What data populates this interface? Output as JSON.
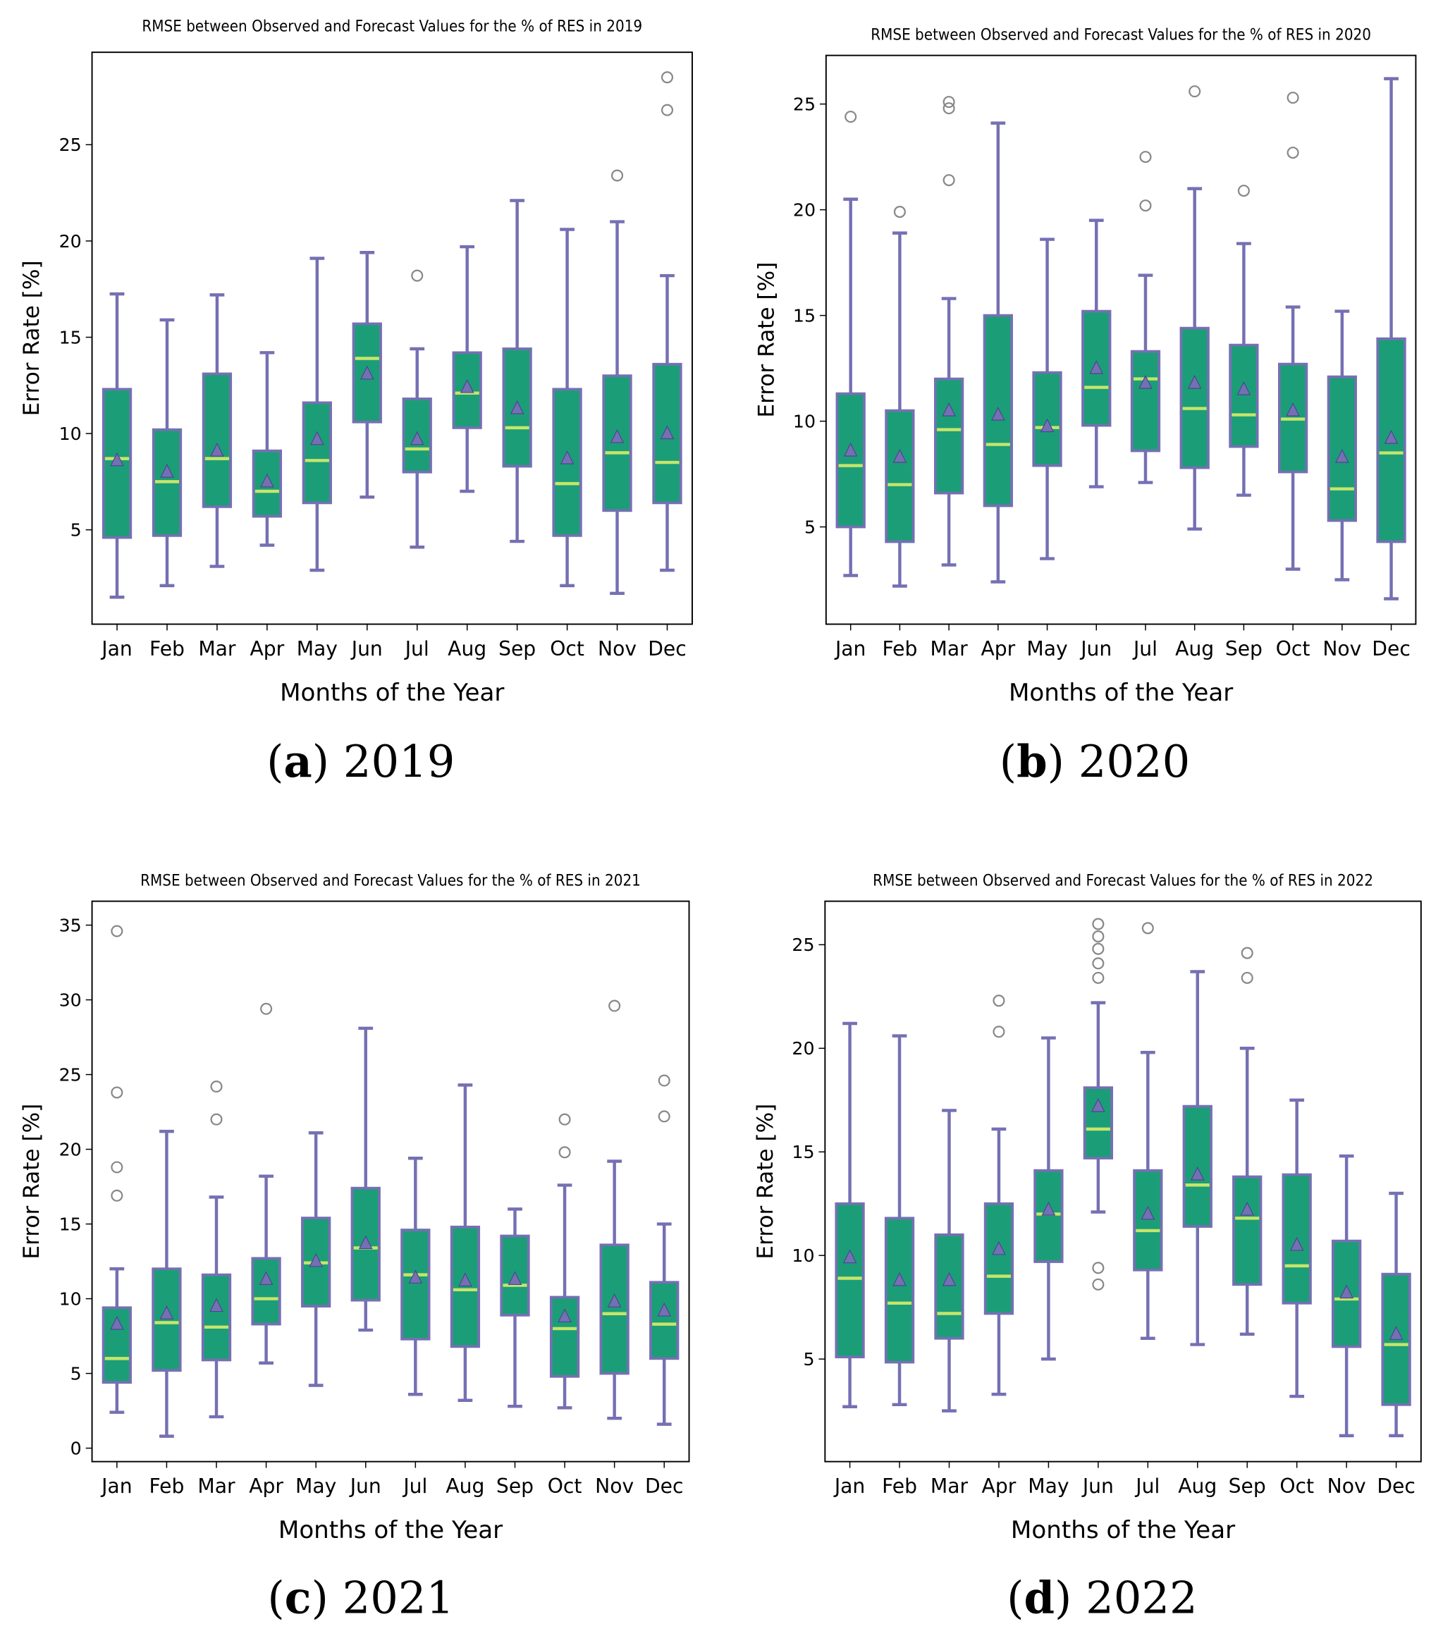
{
  "colors": {
    "box_fill": "#1b9e77",
    "box_edge": "#7570b3",
    "median": "#c7e56b",
    "mean": "#7570b3",
    "outlier": "#888888"
  },
  "chart_data": [
    {
      "type": "box",
      "title": "RMSE between Observed and Forecast Values for the % of RES in 2019",
      "xlabel": "Months of the Year",
      "ylabel": "Error Rate [%]",
      "ylim": [
        0.1,
        29.8
      ],
      "yticks": [
        5,
        10,
        15,
        20,
        25
      ],
      "caption": {
        "open": "(",
        "letter": "a",
        "rest": ") 2019"
      },
      "categories": [
        "Jan",
        "Feb",
        "Mar",
        "Apr",
        "May",
        "Jun",
        "Jul",
        "Aug",
        "Sep",
        "Oct",
        "Nov",
        "Dec"
      ],
      "boxes": [
        {
          "low": 1.5,
          "q1": 4.6,
          "median": 8.7,
          "q3": 12.3,
          "high": 17.25,
          "mean": 8.6,
          "outliers": []
        },
        {
          "low": 2.1,
          "q1": 4.7,
          "median": 7.5,
          "q3": 10.2,
          "high": 15.9,
          "mean": 8.0,
          "outliers": []
        },
        {
          "low": 3.1,
          "q1": 6.2,
          "median": 8.7,
          "q3": 13.1,
          "high": 17.2,
          "mean": 9.1,
          "outliers": []
        },
        {
          "low": 4.2,
          "q1": 5.7,
          "median": 7.0,
          "q3": 9.1,
          "high": 14.2,
          "mean": 7.5,
          "outliers": []
        },
        {
          "low": 2.9,
          "q1": 6.4,
          "median": 8.6,
          "q3": 11.6,
          "high": 19.1,
          "mean": 9.7,
          "outliers": []
        },
        {
          "low": 6.7,
          "q1": 10.6,
          "median": 13.9,
          "q3": 15.7,
          "high": 19.4,
          "mean": 13.1,
          "outliers": []
        },
        {
          "low": 4.1,
          "q1": 8.0,
          "median": 9.2,
          "q3": 11.8,
          "high": 14.4,
          "mean": 9.7,
          "outliers": [
            18.2
          ]
        },
        {
          "low": 7.0,
          "q1": 10.3,
          "median": 12.1,
          "q3": 14.2,
          "high": 19.7,
          "mean": 12.4,
          "outliers": []
        },
        {
          "low": 4.4,
          "q1": 8.3,
          "median": 10.3,
          "q3": 14.4,
          "high": 22.1,
          "mean": 11.3,
          "outliers": []
        },
        {
          "low": 2.1,
          "q1": 4.7,
          "median": 7.4,
          "q3": 12.3,
          "high": 20.6,
          "mean": 8.7,
          "outliers": []
        },
        {
          "low": 1.7,
          "q1": 6.0,
          "median": 9.0,
          "q3": 13.0,
          "high": 21.0,
          "mean": 9.8,
          "outliers": [
            23.4
          ]
        },
        {
          "low": 2.9,
          "q1": 6.4,
          "median": 8.5,
          "q3": 13.6,
          "high": 18.2,
          "mean": 10.0,
          "outliers": [
            28.5,
            26.8
          ]
        }
      ]
    },
    {
      "type": "box",
      "title": "RMSE between Observed and Forecast Values for the % of RES in 2020",
      "xlabel": "Months of the Year",
      "ylabel": "Error Rate [%]",
      "ylim": [
        0.4,
        27.3
      ],
      "yticks": [
        5,
        10,
        15,
        20,
        25
      ],
      "caption": {
        "open": "(",
        "letter": "b",
        "rest": ") 2020"
      },
      "categories": [
        "Jan",
        "Feb",
        "Mar",
        "Apr",
        "May",
        "Jun",
        "Jul",
        "Aug",
        "Sep",
        "Oct",
        "Nov",
        "Dec"
      ],
      "boxes": [
        {
          "low": 2.7,
          "q1": 5.0,
          "median": 7.9,
          "q3": 11.3,
          "high": 20.5,
          "mean": 8.6,
          "outliers": [
            24.4
          ]
        },
        {
          "low": 2.2,
          "q1": 4.3,
          "median": 7.0,
          "q3": 10.5,
          "high": 18.9,
          "mean": 8.3,
          "outliers": [
            19.9
          ]
        },
        {
          "low": 3.2,
          "q1": 6.6,
          "median": 9.6,
          "q3": 12.0,
          "high": 15.8,
          "mean": 10.5,
          "outliers": [
            25.1,
            24.8,
            21.4
          ]
        },
        {
          "low": 2.4,
          "q1": 6.0,
          "median": 8.9,
          "q3": 15.0,
          "high": 24.1,
          "mean": 10.3,
          "outliers": []
        },
        {
          "low": 3.5,
          "q1": 7.9,
          "median": 9.7,
          "q3": 12.3,
          "high": 18.6,
          "mean": 9.75,
          "outliers": []
        },
        {
          "low": 6.9,
          "q1": 9.8,
          "median": 11.6,
          "q3": 15.2,
          "high": 19.5,
          "mean": 12.5,
          "outliers": []
        },
        {
          "low": 7.1,
          "q1": 8.6,
          "median": 12.0,
          "q3": 13.3,
          "high": 16.9,
          "mean": 11.8,
          "outliers": [
            22.5,
            20.2
          ]
        },
        {
          "low": 4.9,
          "q1": 7.8,
          "median": 10.6,
          "q3": 14.4,
          "high": 21.0,
          "mean": 11.8,
          "outliers": [
            25.6
          ]
        },
        {
          "low": 6.5,
          "q1": 8.8,
          "median": 10.3,
          "q3": 13.6,
          "high": 18.4,
          "mean": 11.5,
          "outliers": [
            20.9
          ]
        },
        {
          "low": 3.0,
          "q1": 7.6,
          "median": 10.1,
          "q3": 12.7,
          "high": 15.4,
          "mean": 10.5,
          "outliers": [
            25.3,
            22.7
          ]
        },
        {
          "low": 2.5,
          "q1": 5.3,
          "median": 6.8,
          "q3": 12.1,
          "high": 15.2,
          "mean": 8.3,
          "outliers": []
        },
        {
          "low": 1.6,
          "q1": 4.3,
          "median": 8.5,
          "q3": 13.9,
          "high": 26.2,
          "mean": 9.2,
          "outliers": []
        }
      ]
    },
    {
      "type": "box",
      "title": "RMSE between Observed and Forecast Values for the % of RES in 2021",
      "xlabel": "Months of the Year",
      "ylabel": "Error Rate [%]",
      "ylim": [
        -0.9,
        36.6
      ],
      "yticks": [
        0,
        5,
        10,
        15,
        20,
        25,
        30,
        35
      ],
      "caption": {
        "open": "(",
        "letter": "c",
        "rest": ") 2021"
      },
      "categories": [
        "Jan",
        "Feb",
        "Mar",
        "Apr",
        "May",
        "Jun",
        "Jul",
        "Aug",
        "Sep",
        "Oct",
        "Nov",
        "Dec"
      ],
      "boxes": [
        {
          "low": 2.4,
          "q1": 4.4,
          "median": 6.0,
          "q3": 9.4,
          "high": 12.0,
          "mean": 8.3,
          "outliers": [
            34.6,
            23.8,
            18.8,
            16.9
          ]
        },
        {
          "low": 0.8,
          "q1": 5.2,
          "median": 8.4,
          "q3": 12.0,
          "high": 21.2,
          "mean": 9.0,
          "outliers": []
        },
        {
          "low": 2.1,
          "q1": 5.9,
          "median": 8.1,
          "q3": 11.6,
          "high": 16.8,
          "mean": 9.5,
          "outliers": [
            24.2,
            22.0
          ]
        },
        {
          "low": 5.7,
          "q1": 8.3,
          "median": 10.0,
          "q3": 12.7,
          "high": 18.2,
          "mean": 11.3,
          "outliers": [
            29.4
          ]
        },
        {
          "low": 4.2,
          "q1": 9.5,
          "median": 12.4,
          "q3": 15.4,
          "high": 21.1,
          "mean": 12.5,
          "outliers": []
        },
        {
          "low": 7.9,
          "q1": 9.9,
          "median": 13.4,
          "q3": 17.4,
          "high": 28.1,
          "mean": 13.7,
          "outliers": []
        },
        {
          "low": 3.6,
          "q1": 7.3,
          "median": 11.6,
          "q3": 14.6,
          "high": 19.4,
          "mean": 11.4,
          "outliers": []
        },
        {
          "low": 3.2,
          "q1": 6.8,
          "median": 10.6,
          "q3": 14.8,
          "high": 24.3,
          "mean": 11.2,
          "outliers": []
        },
        {
          "low": 2.8,
          "q1": 8.9,
          "median": 10.9,
          "q3": 14.2,
          "high": 16.0,
          "mean": 11.3,
          "outliers": []
        },
        {
          "low": 2.7,
          "q1": 4.8,
          "median": 8.0,
          "q3": 10.1,
          "high": 17.6,
          "mean": 8.8,
          "outliers": [
            22.0,
            19.8
          ]
        },
        {
          "low": 2.0,
          "q1": 5.0,
          "median": 9.0,
          "q3": 13.6,
          "high": 19.2,
          "mean": 9.8,
          "outliers": [
            29.6
          ]
        },
        {
          "low": 1.6,
          "q1": 6.0,
          "median": 8.3,
          "q3": 11.1,
          "high": 15.0,
          "mean": 9.2,
          "outliers": [
            24.6,
            22.2
          ]
        }
      ]
    },
    {
      "type": "box",
      "title": "RMSE between Observed and Forecast Values for the % of RES in 2022",
      "xlabel": "Months of the Year",
      "ylabel": "Error Rate [%]",
      "ylim": [
        0.05,
        27.1
      ],
      "yticks": [
        5,
        10,
        15,
        20,
        25
      ],
      "caption": {
        "open": "(",
        "letter": "d",
        "rest": ") 2022"
      },
      "categories": [
        "Jan",
        "Feb",
        "Mar",
        "Apr",
        "May",
        "Jun",
        "Jul",
        "Aug",
        "Sep",
        "Oct",
        "Nov",
        "Dec"
      ],
      "boxes": [
        {
          "low": 2.7,
          "q1": 5.1,
          "median": 8.9,
          "q3": 12.5,
          "high": 21.2,
          "mean": 9.9,
          "outliers": []
        },
        {
          "low": 2.8,
          "q1": 4.85,
          "median": 7.7,
          "q3": 11.8,
          "high": 20.6,
          "mean": 8.8,
          "outliers": []
        },
        {
          "low": 2.5,
          "q1": 6.0,
          "median": 7.2,
          "q3": 11.0,
          "high": 17.0,
          "mean": 8.8,
          "outliers": []
        },
        {
          "low": 3.3,
          "q1": 7.2,
          "median": 9.0,
          "q3": 12.5,
          "high": 16.1,
          "mean": 10.3,
          "outliers": [
            22.3,
            20.8
          ]
        },
        {
          "low": 5.0,
          "q1": 9.7,
          "median": 12.0,
          "q3": 14.1,
          "high": 20.5,
          "mean": 12.2,
          "outliers": []
        },
        {
          "low": 12.1,
          "q1": 14.7,
          "median": 16.1,
          "q3": 18.1,
          "high": 22.2,
          "mean": 17.2,
          "outliers": [
            26.0,
            25.4,
            24.8,
            24.1,
            23.4,
            9.4,
            8.6
          ]
        },
        {
          "low": 6.0,
          "q1": 9.3,
          "median": 11.2,
          "q3": 14.1,
          "high": 19.8,
          "mean": 12.0,
          "outliers": [
            25.8
          ]
        },
        {
          "low": 5.7,
          "q1": 11.4,
          "median": 13.4,
          "q3": 17.2,
          "high": 23.7,
          "mean": 13.9,
          "outliers": []
        },
        {
          "low": 6.2,
          "q1": 8.6,
          "median": 11.8,
          "q3": 13.8,
          "high": 20.0,
          "mean": 12.2,
          "outliers": [
            24.6,
            23.4
          ]
        },
        {
          "low": 3.2,
          "q1": 7.7,
          "median": 9.5,
          "q3": 13.9,
          "high": 17.5,
          "mean": 10.5,
          "outliers": []
        },
        {
          "low": 1.3,
          "q1": 5.6,
          "median": 7.9,
          "q3": 10.7,
          "high": 14.8,
          "mean": 8.2,
          "outliers": []
        },
        {
          "low": 1.3,
          "q1": 2.8,
          "median": 5.7,
          "q3": 9.1,
          "high": 13.0,
          "mean": 6.2,
          "outliers": []
        }
      ]
    }
  ]
}
